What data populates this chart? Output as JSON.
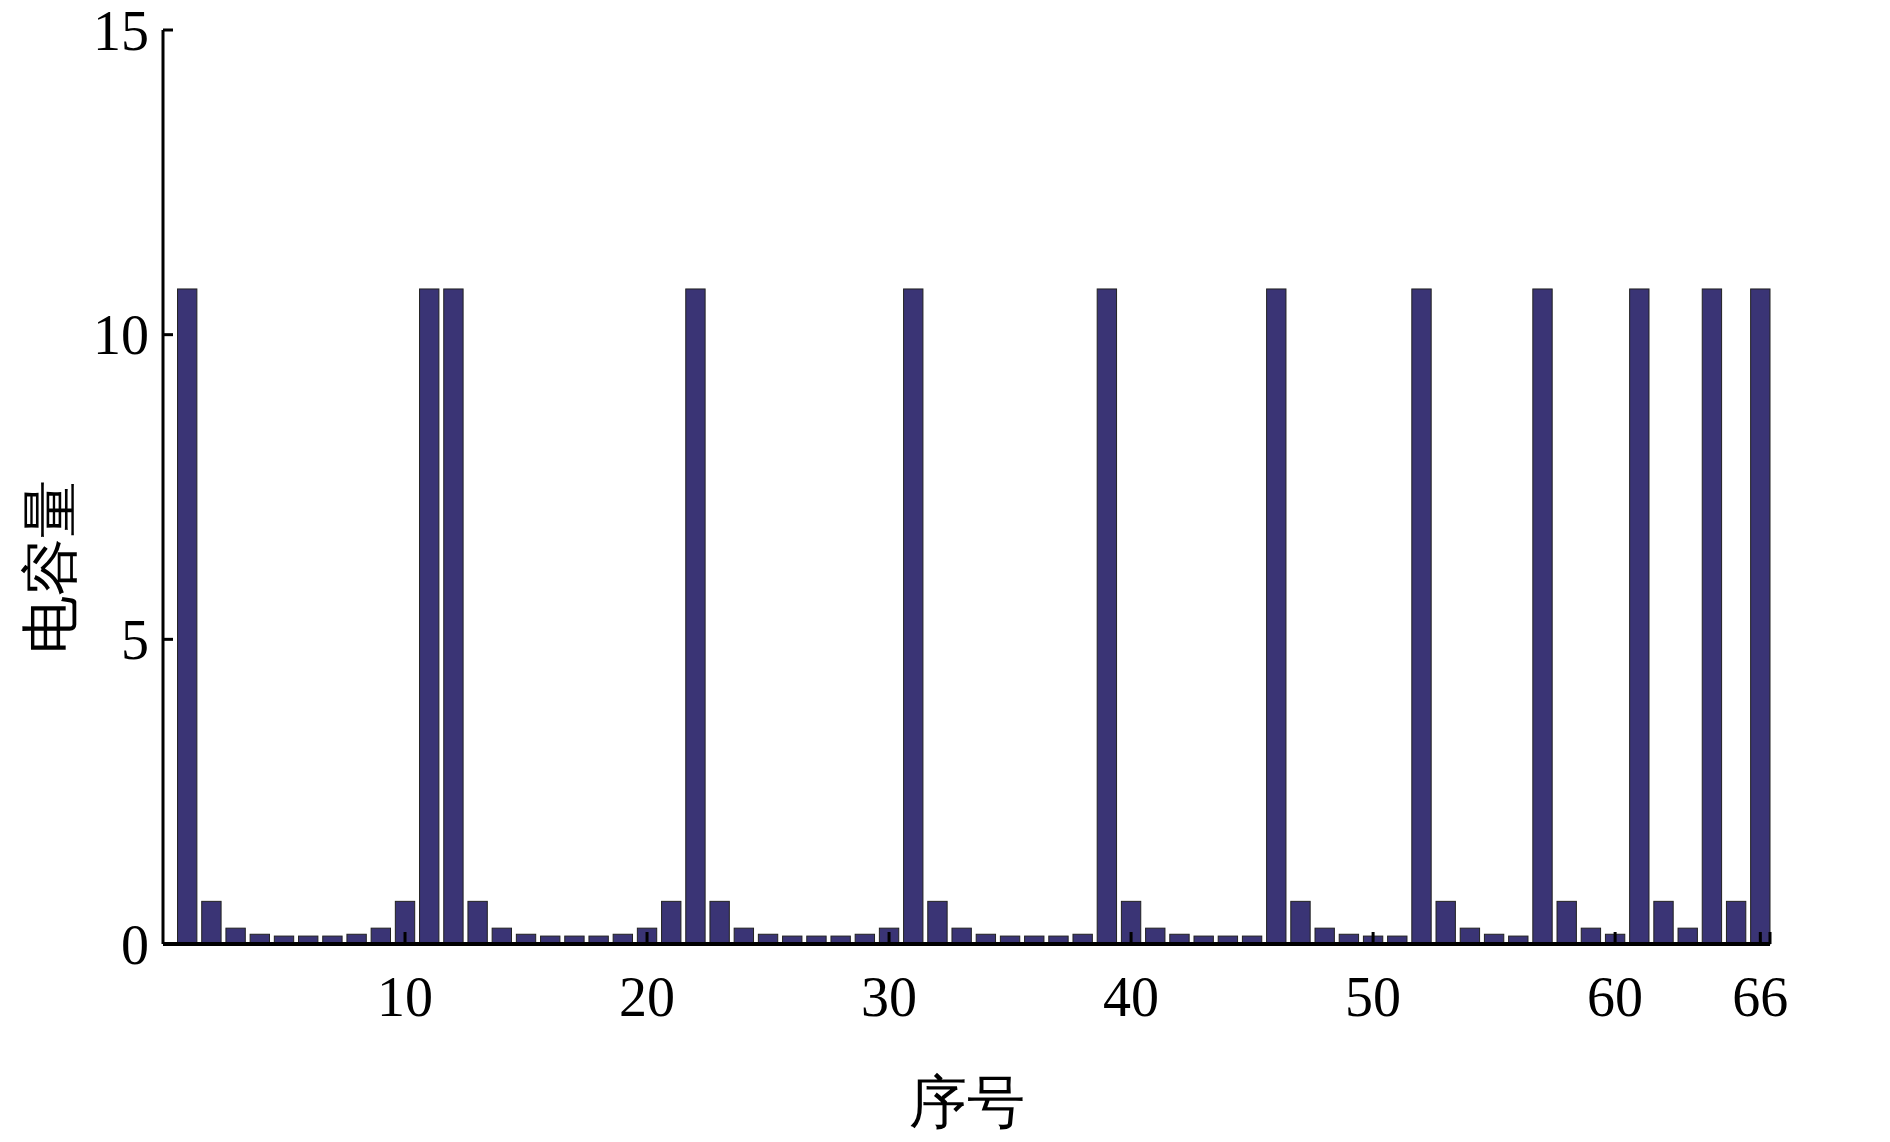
{
  "chart_data": {
    "type": "bar",
    "xlabel": "序号",
    "ylabel": "电容量",
    "x": [
      1,
      2,
      3,
      4,
      5,
      6,
      7,
      8,
      9,
      10,
      11,
      12,
      13,
      14,
      15,
      16,
      17,
      18,
      19,
      20,
      21,
      22,
      23,
      24,
      25,
      26,
      27,
      28,
      29,
      30,
      31,
      32,
      33,
      34,
      35,
      36,
      37,
      38,
      39,
      40,
      41,
      42,
      43,
      44,
      45,
      46,
      47,
      48,
      49,
      50,
      51,
      52,
      53,
      54,
      55,
      56,
      57,
      58,
      59,
      60,
      61,
      62,
      63,
      64,
      65,
      66
    ],
    "values": [
      10.75,
      0.7,
      0.26,
      0.16,
      0.13,
      0.13,
      0.13,
      0.16,
      0.26,
      0.7,
      10.75,
      10.75,
      0.7,
      0.26,
      0.16,
      0.13,
      0.13,
      0.13,
      0.16,
      0.26,
      0.7,
      10.75,
      0.7,
      0.26,
      0.16,
      0.13,
      0.13,
      0.13,
      0.16,
      0.26,
      10.75,
      0.7,
      0.26,
      0.16,
      0.13,
      0.13,
      0.13,
      0.16,
      10.75,
      0.7,
      0.26,
      0.16,
      0.13,
      0.13,
      0.13,
      10.75,
      0.7,
      0.26,
      0.16,
      0.13,
      0.13,
      10.75,
      0.7,
      0.26,
      0.16,
      0.13,
      10.75,
      0.7,
      0.26,
      0.16,
      10.75,
      0.7,
      0.26,
      10.75,
      0.7,
      10.75
    ],
    "color": "#3a3475",
    "xlim": [
      0,
      66.4
    ],
    "xticks": [
      10,
      20,
      30,
      40,
      50,
      60,
      66
    ],
    "ylim": [
      0,
      15
    ],
    "yticks": [
      0,
      5,
      10,
      15
    ],
    "grid": false
  }
}
